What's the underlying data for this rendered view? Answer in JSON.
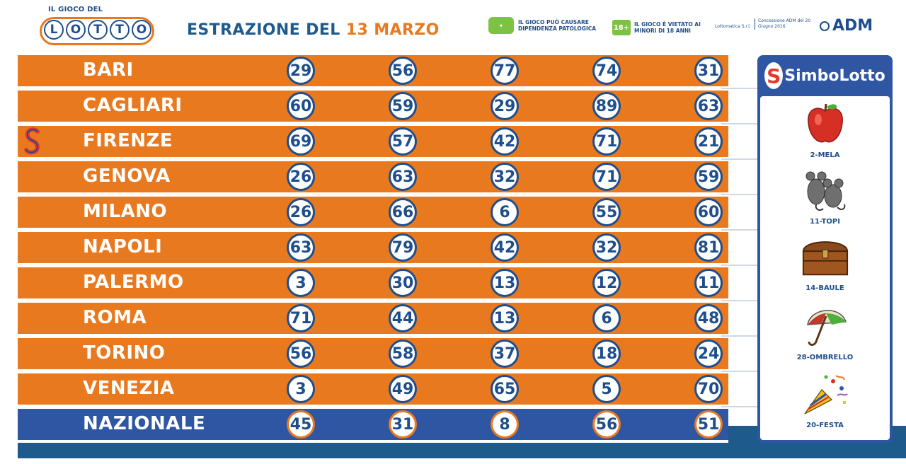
{
  "header": {
    "logo_top": "IL GIOCO DEL",
    "logo_letters": [
      "L",
      "O",
      "T",
      "T",
      "O"
    ],
    "title_prefix": "ESTRAZIONE DEL",
    "title_date": "13 MARZO",
    "warning1": "IL GIOCO PUÒ CAUSARE DIPENDENZA PATOLOGICA",
    "warning1_icon": "gioco sicuro",
    "age_badge": "18+",
    "warning2": "IL GIOCO È VIETATO AI MINORI DI 18 ANNI",
    "lottomatica": "Lottomatica S.r.l.",
    "concessione": "Concessione ADM del 20 Giugno 2016",
    "adm": "ADM"
  },
  "draws": [
    {
      "city": "BARI",
      "numbers": [
        "29",
        "56",
        "77",
        "74",
        "31"
      ]
    },
    {
      "city": "CAGLIARI",
      "numbers": [
        "60",
        "59",
        "29",
        "89",
        "63"
      ]
    },
    {
      "city": "FIRENZE",
      "numbers": [
        "69",
        "57",
        "42",
        "71",
        "21"
      ]
    },
    {
      "city": "GENOVA",
      "numbers": [
        "26",
        "63",
        "32",
        "71",
        "59"
      ]
    },
    {
      "city": "MILANO",
      "numbers": [
        "26",
        "66",
        "6",
        "55",
        "60"
      ]
    },
    {
      "city": "NAPOLI",
      "numbers": [
        "63",
        "79",
        "42",
        "32",
        "81"
      ]
    },
    {
      "city": "PALERMO",
      "numbers": [
        "3",
        "30",
        "13",
        "12",
        "11"
      ]
    },
    {
      "city": "ROMA",
      "numbers": [
        "71",
        "44",
        "13",
        "6",
        "48"
      ]
    },
    {
      "city": "TORINO",
      "numbers": [
        "56",
        "58",
        "37",
        "18",
        "24"
      ]
    },
    {
      "city": "VENEZIA",
      "numbers": [
        "3",
        "49",
        "65",
        "5",
        "70"
      ]
    },
    {
      "city": "NAZIONALE",
      "numbers": [
        "45",
        "31",
        "8",
        "56",
        "51"
      ]
    }
  ],
  "simbolotto": {
    "title": "SimboLotto",
    "symbols": [
      {
        "label": "2-MELA",
        "icon": "apple-icon"
      },
      {
        "label": "11-TOPI",
        "icon": "mice-icon"
      },
      {
        "label": "14-BAULE",
        "icon": "chest-icon"
      },
      {
        "label": "28-OMBRELLO",
        "icon": "umbrella-icon"
      },
      {
        "label": "20-FESTA",
        "icon": "party-icon"
      }
    ]
  },
  "colors": {
    "orange": "#e8791e",
    "blue": "#2f56a3",
    "navy": "#1f4e8c"
  }
}
